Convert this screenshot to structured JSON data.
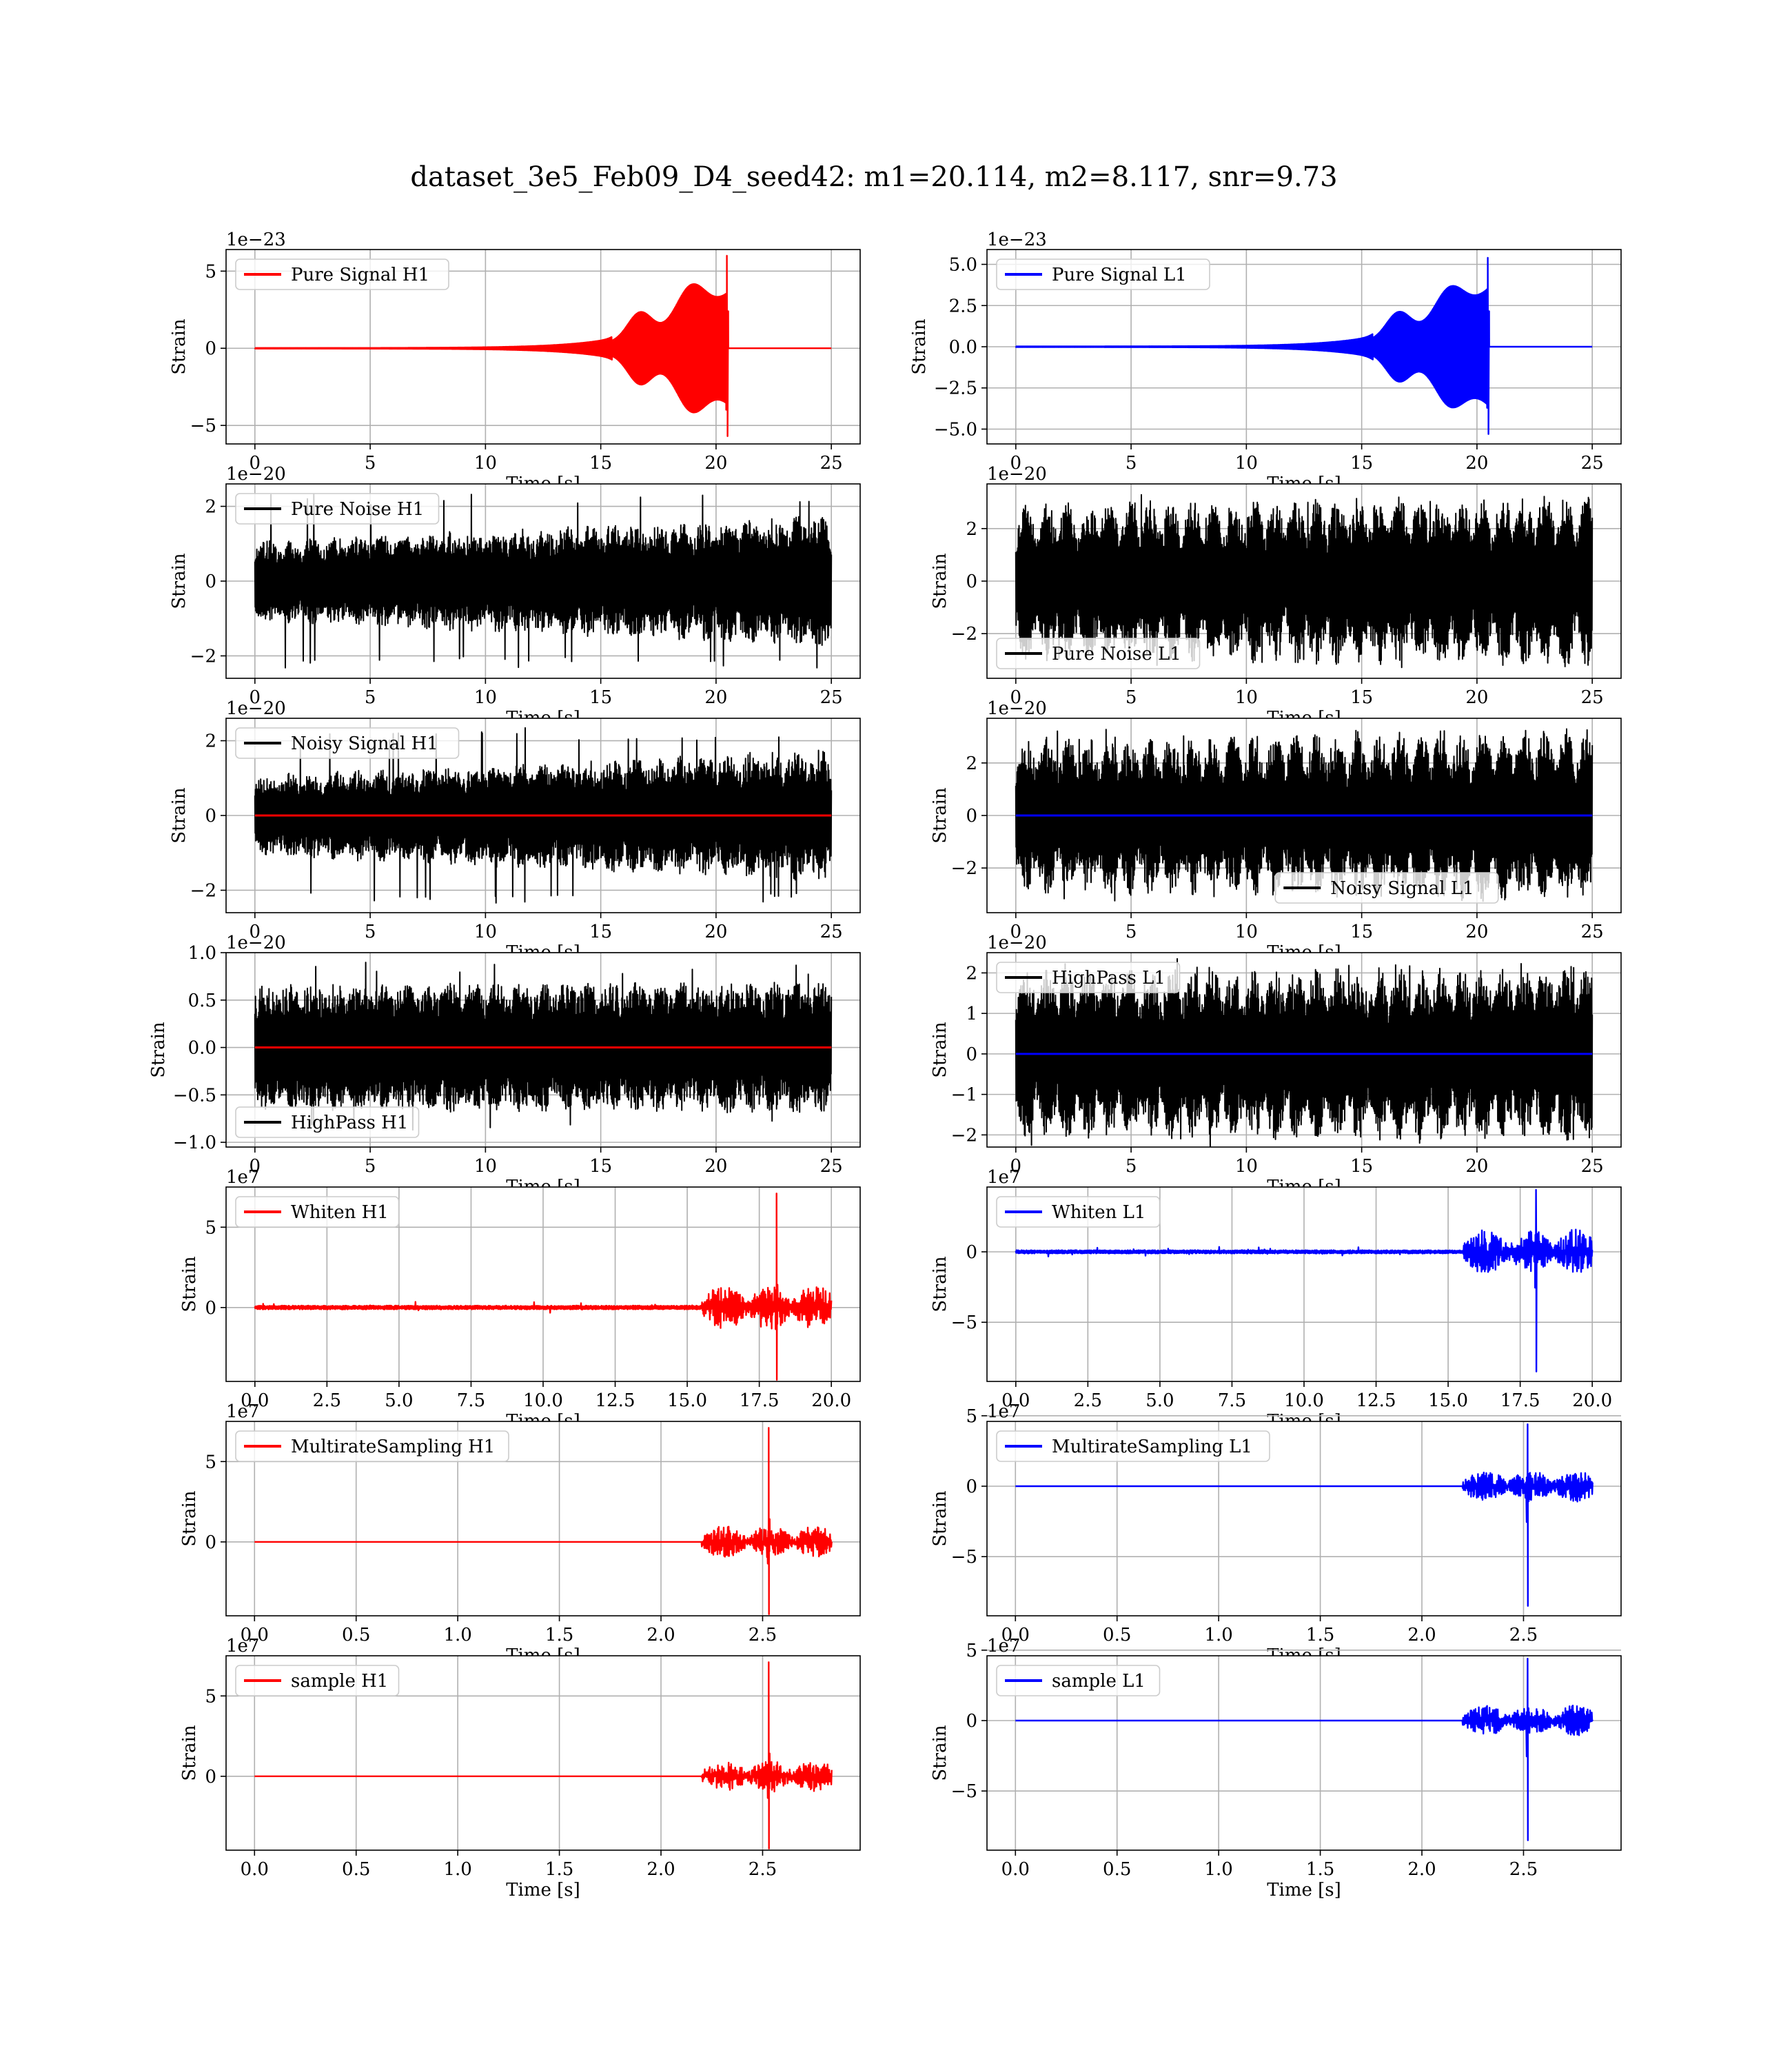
{
  "figure": {
    "title": "dataset_3e5_Feb09_D4_seed42: m1=20.114, m2=8.117, snr=9.73"
  },
  "colors": {
    "red": "#ff0000",
    "blue": "#0000ff",
    "black": "#000000"
  },
  "chart_data": [
    {
      "type": "line",
      "legend": "Pure Signal H1",
      "legend_placement": "upper-left",
      "xlabel": "Time [s]",
      "ylabel": "Strain",
      "offset_text": "1e−23",
      "xlim": [
        -1.25,
        26.25
      ],
      "ylim": [
        -6.2,
        6.4
      ],
      "grid": true,
      "xticks": [
        0,
        5,
        10,
        15,
        20,
        25
      ],
      "xtick_labels": [
        "0",
        "5",
        "10",
        "15",
        "20",
        "25"
      ],
      "yticks": [
        -5,
        0,
        5
      ],
      "ytick_labels": [
        "−5",
        "0",
        "5"
      ],
      "line_color": "#ff0000",
      "line_width": 2.4,
      "waveform": {
        "kind": "chirp",
        "end": 25,
        "merger": 20.5,
        "peak_max": 6.0,
        "peak_min": -5.7,
        "bumps": [
          [
            16.7,
            0.75,
            1.7
          ],
          [
            18.9,
            0.9,
            2.4
          ]
        ]
      }
    },
    {
      "type": "line",
      "legend": "Pure Signal L1",
      "legend_placement": "upper-left",
      "xlabel": "Time [s]",
      "ylabel": "Strain",
      "offset_text": "1e−23",
      "xlim": [
        -1.25,
        26.25
      ],
      "ylim": [
        -5.9,
        5.9
      ],
      "grid": true,
      "xticks": [
        0,
        5,
        10,
        15,
        20,
        25
      ],
      "xtick_labels": [
        "0",
        "5",
        "10",
        "15",
        "20",
        "25"
      ],
      "yticks": [
        -5,
        -2.5,
        0,
        2.5,
        5
      ],
      "ytick_labels": [
        "−5.0",
        "−2.5",
        "0.0",
        "2.5",
        "5.0"
      ],
      "line_color": "#0000ff",
      "line_width": 2.4,
      "waveform": {
        "kind": "chirp",
        "end": 25,
        "merger": 20.5,
        "peak_max": 5.4,
        "peak_min": -5.3,
        "bumps": [
          [
            16.6,
            0.75,
            1.5
          ],
          [
            18.8,
            0.9,
            2.0
          ]
        ]
      }
    },
    {
      "type": "line",
      "legend": "Pure Noise H1",
      "legend_placement": "upper-left",
      "xlabel": "Time [s]",
      "ylabel": "Strain",
      "offset_text": "1e−20",
      "xlim": [
        -1.25,
        26.25
      ],
      "ylim": [
        -2.6,
        2.6
      ],
      "grid": true,
      "xticks": [
        0,
        5,
        10,
        15,
        20,
        25
      ],
      "xtick_labels": [
        "0",
        "5",
        "10",
        "15",
        "20",
        "25"
      ],
      "yticks": [
        -2,
        0,
        2
      ],
      "ytick_labels": [
        "−2",
        "0",
        "2"
      ],
      "waveform": {
        "kind": "noise",
        "end": 25,
        "amp_start": 0.95,
        "amp_end": 1.55,
        "wobble_depth": 0.15,
        "wobble_period": 1.0,
        "spike_to": 2.35
      }
    },
    {
      "type": "line",
      "legend": "Pure Noise L1",
      "legend_placement": "lower-left",
      "xlabel": "Time [s]",
      "ylabel": "Strain",
      "offset_text": "1e−20",
      "xlim": [
        -1.25,
        26.25
      ],
      "ylim": [
        -3.7,
        3.7
      ],
      "grid": true,
      "xticks": [
        0,
        5,
        10,
        15,
        20,
        25
      ],
      "xtick_labels": [
        "0",
        "5",
        "10",
        "15",
        "20",
        "25"
      ],
      "yticks": [
        -2,
        0,
        2
      ],
      "ytick_labels": [
        "−2",
        "0",
        "2"
      ],
      "waveform": {
        "kind": "noise",
        "end": 25,
        "amp_start": 2.35,
        "amp_end": 2.6,
        "wobble_depth": 0.28,
        "wobble_period": 0.9,
        "spike_to": 3.35
      }
    },
    {
      "type": "line",
      "legend": "Noisy Signal H1",
      "legend_placement": "upper-left",
      "xlabel": "Time [s]",
      "ylabel": "Strain",
      "offset_text": "1e−20",
      "xlim": [
        -1.25,
        26.25
      ],
      "ylim": [
        -2.6,
        2.6
      ],
      "grid": true,
      "xticks": [
        0,
        5,
        10,
        15,
        20,
        25
      ],
      "xtick_labels": [
        "0",
        "5",
        "10",
        "15",
        "20",
        "25"
      ],
      "yticks": [
        -2,
        0,
        2
      ],
      "ytick_labels": [
        "−2",
        "0",
        "2"
      ],
      "overlay": {
        "color": "#ff0000",
        "value": 0
      },
      "waveform": {
        "kind": "noise",
        "end": 25,
        "amp_start": 0.95,
        "amp_end": 1.55,
        "wobble_depth": 0.15,
        "wobble_period": 1.0,
        "spike_to": 2.35
      }
    },
    {
      "type": "line",
      "legend": "Noisy Signal L1",
      "legend_placement": "lower-center",
      "xlabel": "Time [s]",
      "ylabel": "Strain",
      "offset_text": "1e−20",
      "xlim": [
        -1.25,
        26.25
      ],
      "ylim": [
        -3.7,
        3.7
      ],
      "grid": true,
      "xticks": [
        0,
        5,
        10,
        15,
        20,
        25
      ],
      "xtick_labels": [
        "0",
        "5",
        "10",
        "15",
        "20",
        "25"
      ],
      "yticks": [
        -2,
        0,
        2
      ],
      "ytick_labels": [
        "−2",
        "0",
        "2"
      ],
      "overlay": {
        "color": "#0000ff",
        "value": 0
      },
      "waveform": {
        "kind": "noise",
        "end": 25,
        "amp_start": 2.35,
        "amp_end": 2.6,
        "wobble_depth": 0.28,
        "wobble_period": 0.9,
        "spike_to": 3.35
      }
    },
    {
      "type": "line",
      "legend": "HighPass H1",
      "legend_placement": "lower-left",
      "xlabel": "Time [s]",
      "ylabel": "Strain",
      "offset_text": "1e−20",
      "xlim": [
        -1.25,
        26.25
      ],
      "ylim": [
        -1.05,
        1.0
      ],
      "grid": true,
      "xticks": [
        0,
        5,
        10,
        15,
        20,
        25
      ],
      "xtick_labels": [
        "0",
        "5",
        "10",
        "15",
        "20",
        "25"
      ],
      "yticks": [
        -1,
        -0.5,
        0,
        0.5,
        1
      ],
      "ytick_labels": [
        "−1.0",
        "−0.5",
        "0.0",
        "0.5",
        "1.0"
      ],
      "overlay": {
        "color": "#ff0000",
        "value": 0
      },
      "waveform": {
        "kind": "noise",
        "end": 25,
        "amp_start": 0.6,
        "amp_end": 0.62,
        "wobble_depth": 0.12,
        "wobble_period": 1.0,
        "spike_to": 0.9
      }
    },
    {
      "type": "line",
      "legend": "HighPass L1",
      "legend_placement": "upper-left",
      "xlabel": "Time [s]",
      "ylabel": "Strain",
      "offset_text": "1e−20",
      "xlim": [
        -1.25,
        26.25
      ],
      "ylim": [
        -2.3,
        2.5
      ],
      "grid": true,
      "xticks": [
        0,
        5,
        10,
        15,
        20,
        25
      ],
      "xtick_labels": [
        "0",
        "5",
        "10",
        "15",
        "20",
        "25"
      ],
      "yticks": [
        -2,
        -1,
        0,
        1,
        2
      ],
      "ytick_labels": [
        "−2",
        "−1",
        "0",
        "1",
        "2"
      ],
      "overlay": {
        "color": "#0000ff",
        "value": 0
      },
      "waveform": {
        "kind": "noise",
        "end": 25,
        "amp_start": 1.65,
        "amp_end": 1.75,
        "wobble_depth": 0.25,
        "wobble_period": 0.9,
        "spike_to": 2.35
      }
    },
    {
      "type": "line",
      "legend": "Whiten H1",
      "legend_placement": "upper-left",
      "xlabel": "Time [s]",
      "ylabel": "Strain",
      "offset_text": "1e7",
      "xlim": [
        -1.0,
        21.0
      ],
      "ylim": [
        -4.6,
        7.5
      ],
      "grid": true,
      "xticks": [
        0,
        2.5,
        5,
        7.5,
        10,
        12.5,
        15,
        17.5,
        20
      ],
      "xtick_labels": [
        "0.0",
        "2.5",
        "5.0",
        "7.5",
        "10.0",
        "12.5",
        "15.0",
        "17.5",
        "20.0"
      ],
      "yticks": [
        0,
        5
      ],
      "ytick_labels": [
        "0",
        "5"
      ],
      "line_color": "#ff0000",
      "line_width": 2.4,
      "waveform": {
        "kind": "burst",
        "end": 20,
        "spike_t": 18.1,
        "spike_max": 7.1,
        "spike_min": -4.5,
        "base": 0.12,
        "cluster_start": 15.5,
        "cluster_amp": 1.4
      }
    },
    {
      "type": "line",
      "legend": "Whiten L1",
      "legend_placement": "upper-left",
      "xlabel": "Time [s]",
      "ylabel": "Strain",
      "offset_text": "1e7",
      "xlim": [
        -1.0,
        21.0
      ],
      "ylim": [
        -9.2,
        4.6
      ],
      "grid": true,
      "xticks": [
        0,
        2.5,
        5,
        7.5,
        10,
        12.5,
        15,
        17.5,
        20
      ],
      "xtick_labels": [
        "0.0",
        "2.5",
        "5.0",
        "7.5",
        "10.0",
        "12.5",
        "15.0",
        "17.5",
        "20.0"
      ],
      "yticks": [
        -5,
        0
      ],
      "ytick_labels": [
        "−5",
        "0"
      ],
      "line_color": "#0000ff",
      "line_width": 2.4,
      "waveform": {
        "kind": "burst",
        "end": 20,
        "spike_t": 18.05,
        "spike_max": 4.4,
        "spike_min": -8.5,
        "base": 0.12,
        "cluster_start": 15.5,
        "cluster_amp": 1.6
      }
    },
    {
      "type": "line",
      "legend": "MultirateSampling H1",
      "legend_placement": "upper-left",
      "xlabel": "Time [s]",
      "ylabel": "Strain",
      "offset_text": "1e7",
      "xlim": [
        -0.14,
        2.98
      ],
      "ylim": [
        -4.6,
        7.5
      ],
      "grid": true,
      "xticks": [
        0,
        0.5,
        1,
        1.5,
        2,
        2.5
      ],
      "xtick_labels": [
        "0.0",
        "0.5",
        "1.0",
        "1.5",
        "2.0",
        "2.5"
      ],
      "yticks": [
        0,
        5
      ],
      "ytick_labels": [
        "0",
        "5"
      ],
      "line_color": "#ff0000",
      "line_width": 2.4,
      "waveform": {
        "kind": "burst",
        "end": 2.84,
        "spike_t": 2.53,
        "spike_max": 7.1,
        "spike_min": -4.5,
        "base": 0.0,
        "cluster_start": 2.2,
        "cluster_amp": 1.0
      }
    },
    {
      "type": "line",
      "legend": "MultirateSampling L1",
      "legend_placement": "upper-left",
      "xlabel": "Time [s]",
      "ylabel": "Strain",
      "offset_text": "1e7",
      "xlim": [
        -0.14,
        2.98
      ],
      "ylim": [
        -9.2,
        4.6
      ],
      "grid": true,
      "xticks": [
        0,
        0.5,
        1,
        1.5,
        2,
        2.5
      ],
      "xtick_labels": [
        "0.0",
        "0.5",
        "1.0",
        "1.5",
        "2.0",
        "2.5"
      ],
      "yticks": [
        -5,
        0,
        5
      ],
      "ytick_labels": [
        "−5",
        "0",
        "5"
      ],
      "line_color": "#0000ff",
      "line_width": 2.4,
      "waveform": {
        "kind": "burst",
        "end": 2.84,
        "spike_t": 2.52,
        "spike_max": 4.4,
        "spike_min": -8.5,
        "base": 0.0,
        "cluster_start": 2.2,
        "cluster_amp": 1.1
      }
    },
    {
      "type": "line",
      "legend": "sample H1",
      "legend_placement": "upper-left",
      "xlabel": "Time [s]",
      "ylabel": "Strain",
      "offset_text": "1e7",
      "xlim": [
        -0.14,
        2.98
      ],
      "ylim": [
        -4.6,
        7.5
      ],
      "grid": true,
      "xticks": [
        0,
        0.5,
        1,
        1.5,
        2,
        2.5
      ],
      "xtick_labels": [
        "0.0",
        "0.5",
        "1.0",
        "1.5",
        "2.0",
        "2.5"
      ],
      "yticks": [
        0,
        5
      ],
      "ytick_labels": [
        "0",
        "5"
      ],
      "line_color": "#ff0000",
      "line_width": 2.4,
      "waveform": {
        "kind": "burst",
        "end": 2.84,
        "spike_t": 2.53,
        "spike_max": 7.1,
        "spike_min": -4.5,
        "base": 0.0,
        "cluster_start": 2.2,
        "cluster_amp": 1.0
      }
    },
    {
      "type": "line",
      "legend": "sample L1",
      "legend_placement": "upper-left",
      "xlabel": "Time [s]",
      "ylabel": "Strain",
      "offset_text": "1e7",
      "xlim": [
        -0.14,
        2.98
      ],
      "ylim": [
        -9.2,
        4.6
      ],
      "grid": true,
      "xticks": [
        0,
        0.5,
        1,
        1.5,
        2,
        2.5
      ],
      "xtick_labels": [
        "0.0",
        "0.5",
        "1.0",
        "1.5",
        "2.0",
        "2.5"
      ],
      "yticks": [
        -5,
        0,
        5
      ],
      "ytick_labels": [
        "−5",
        "0",
        "5"
      ],
      "line_color": "#0000ff",
      "line_width": 2.4,
      "waveform": {
        "kind": "burst",
        "end": 2.84,
        "spike_t": 2.52,
        "spike_max": 4.4,
        "spike_min": -8.5,
        "base": 0.0,
        "cluster_start": 2.2,
        "cluster_amp": 1.1
      }
    }
  ]
}
